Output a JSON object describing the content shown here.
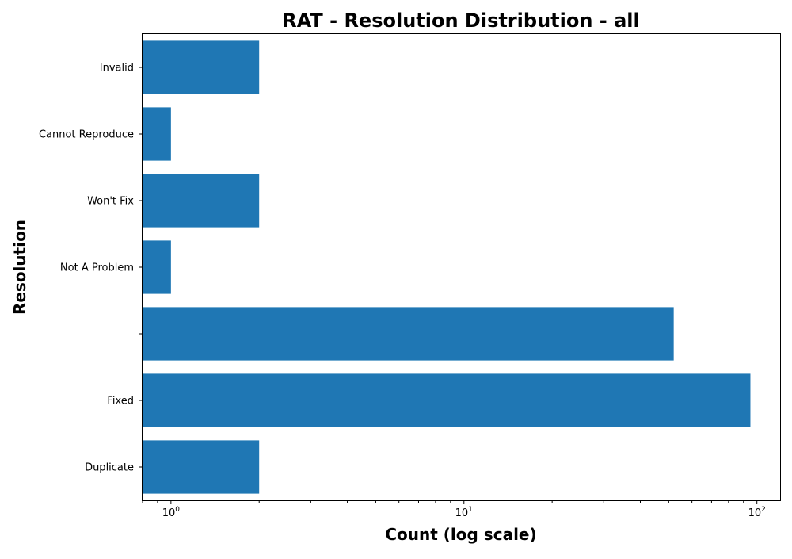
{
  "chart_data": {
    "type": "bar",
    "orientation": "horizontal",
    "title": "RAT - Resolution Distribution - all",
    "xlabel": "Count (log scale)",
    "ylabel": "Resolution",
    "x_scale": "log",
    "xlim": [
      0.8,
      120
    ],
    "x_ticks": [
      {
        "value": 1,
        "base": "10",
        "exp": "0"
      },
      {
        "value": 10,
        "base": "10",
        "exp": "1"
      },
      {
        "value": 100,
        "base": "10",
        "exp": "2"
      }
    ],
    "categories": [
      "Duplicate",
      "Fixed",
      "",
      "Not A Problem",
      "Won't Fix",
      "Cannot Reproduce",
      "Invalid"
    ],
    "values": [
      2,
      95,
      52,
      1,
      2,
      1,
      2
    ],
    "bar_color": "#1f77b4",
    "grid": false,
    "legend": "none"
  }
}
